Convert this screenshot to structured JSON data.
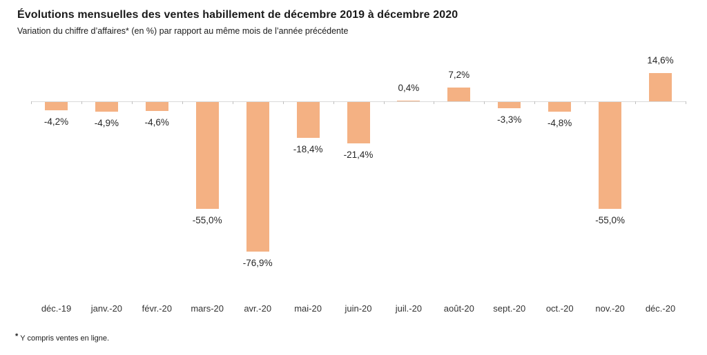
{
  "header": {
    "title": "Évolutions mensuelles des ventes habillement de décembre 2019 à décembre 2020",
    "subtitle": "Variation du chiffre d’affaires* (en %) par rapport au même mois de l’année précédente"
  },
  "footnote": {
    "star": "*",
    "text": "Y compris ventes en ligne."
  },
  "chart_data": {
    "type": "bar",
    "title": "Évolutions mensuelles des ventes habillement de décembre 2019 à décembre 2020",
    "subtitle": "Variation du chiffre d’affaires* (en %) par rapport au même mois de l’année précédente",
    "categories": [
      "déc.-19",
      "janv.-20",
      "févr.-20",
      "mars-20",
      "avr.-20",
      "mai-20",
      "juin-20",
      "juil.-20",
      "août-20",
      "sept.-20",
      "oct.-20",
      "nov.-20",
      "déc.-20"
    ],
    "values": [
      -4.2,
      -4.9,
      -4.6,
      -55.0,
      -76.9,
      -18.4,
      -21.4,
      0.4,
      7.2,
      -3.3,
      -4.8,
      -55.0,
      14.6
    ],
    "value_labels": [
      "-4,2%",
      "-4,9%",
      "-4,6%",
      "-55,0%",
      "-76,9%",
      "-18,4%",
      "-21,4%",
      "0,4%",
      "7,2%",
      "-3,3%",
      "-4,8%",
      "-55,0%",
      "14,6%"
    ],
    "xlabel": "",
    "ylabel": "",
    "ylim": [
      -90,
      20
    ],
    "grid": false,
    "legend": false,
    "bar_color": "#F4B183",
    "axis_color": "#D9D9D9",
    "tick_color": "#BFBFBF",
    "label_color": "#262626"
  }
}
